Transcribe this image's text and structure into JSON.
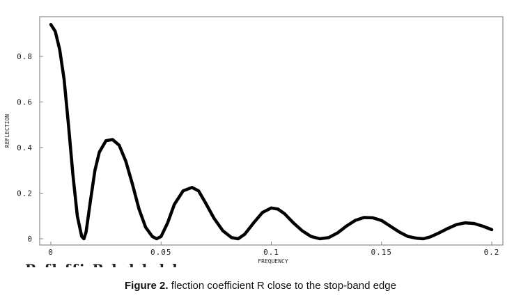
{
  "chart_data": {
    "type": "line",
    "xlabel": "FREQUENCY",
    "ylabel": "REFLECTION",
    "xlim": [
      0,
      0.2
    ],
    "ylim": [
      0,
      0.95
    ],
    "x_ticks": [
      "0",
      "0.05",
      "0.1",
      "0.15",
      "0.2"
    ],
    "x_tick_values": [
      0,
      0.05,
      0.1,
      0.15,
      0.2
    ],
    "y_ticks": [
      "0",
      "0.2",
      "0.4",
      "0.6",
      "0.8"
    ],
    "y_tick_values": [
      0,
      0.2,
      0.4,
      0.6,
      0.8
    ],
    "grid": false,
    "series": [
      {
        "x": [
          0,
          0.002,
          0.004,
          0.006,
          0.008,
          0.01,
          0.012,
          0.014,
          0.015,
          0.016,
          0.018,
          0.02,
          0.022,
          0.025,
          0.028,
          0.031,
          0.034,
          0.037,
          0.04,
          0.043,
          0.046,
          0.048,
          0.05,
          0.053,
          0.056,
          0.06,
          0.064,
          0.067,
          0.07,
          0.074,
          0.078,
          0.082,
          0.085,
          0.088,
          0.092,
          0.096,
          0.1,
          0.103,
          0.106,
          0.11,
          0.114,
          0.118,
          0.122,
          0.126,
          0.13,
          0.134,
          0.138,
          0.142,
          0.146,
          0.15,
          0.154,
          0.158,
          0.162,
          0.166,
          0.169,
          0.172,
          0.176,
          0.18,
          0.184,
          0.188,
          0.192,
          0.196,
          0.2
        ],
        "y": [
          0.94,
          0.91,
          0.83,
          0.7,
          0.5,
          0.28,
          0.1,
          0.01,
          0.0,
          0.03,
          0.17,
          0.3,
          0.38,
          0.43,
          0.435,
          0.41,
          0.34,
          0.24,
          0.13,
          0.05,
          0.01,
          0.0,
          0.01,
          0.07,
          0.15,
          0.21,
          0.225,
          0.21,
          0.16,
          0.09,
          0.035,
          0.005,
          0.0,
          0.02,
          0.07,
          0.115,
          0.135,
          0.13,
          0.11,
          0.07,
          0.035,
          0.01,
          0.0,
          0.005,
          0.025,
          0.055,
          0.08,
          0.093,
          0.092,
          0.08,
          0.055,
          0.03,
          0.01,
          0.002,
          0.0,
          0.008,
          0.025,
          0.045,
          0.062,
          0.07,
          0.067,
          0.055,
          0.04
        ]
      }
    ]
  },
  "caption": {
    "label": "Figure 2.",
    "text": " flection coefficient R close to the stop-band edge"
  },
  "cut_text": "R  fl           ffi        R   l          d          l     d  l"
}
